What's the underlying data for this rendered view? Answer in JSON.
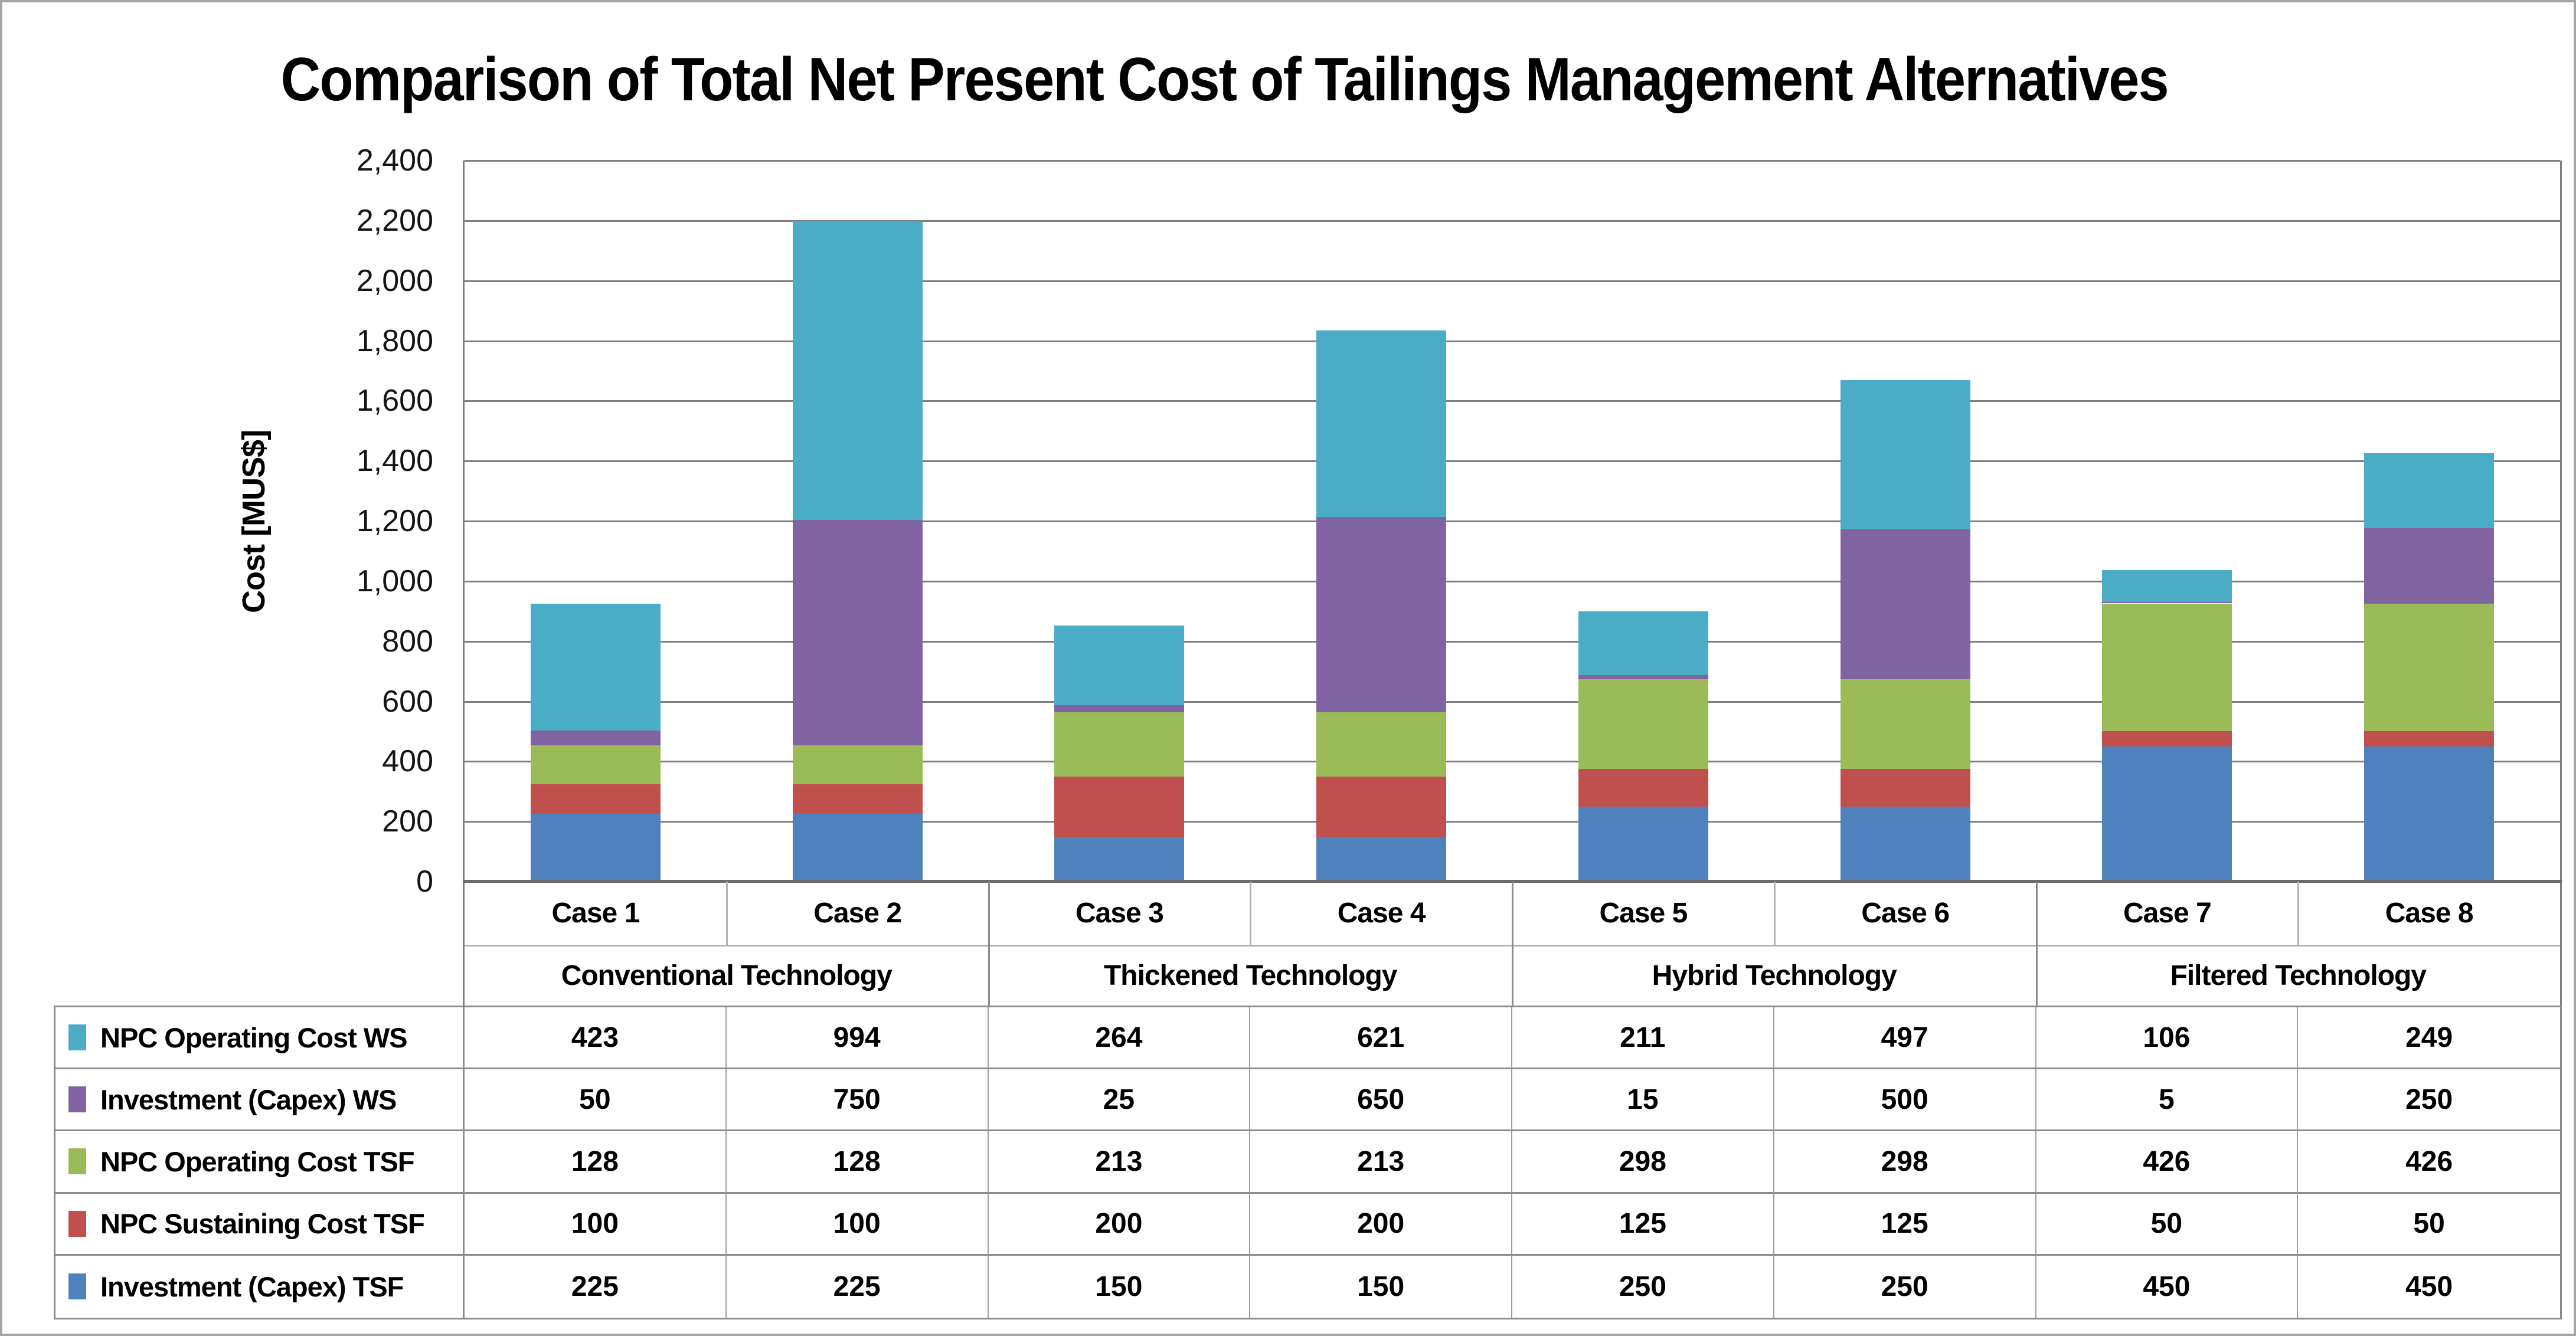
{
  "window": {
    "background": "#ffffff",
    "frame_border_color": "#a6a6a6"
  },
  "chart_data": {
    "type": "bar",
    "stacked": true,
    "title": "Comparison of Total Net Present Cost of Tailings Management Alternatives",
    "xlabel": "",
    "ylabel": "Cost [MUS$]",
    "ylim": [
      0,
      2400
    ],
    "ytick_step": 200,
    "ytick_labels_top_to_bottom": [
      "2,400",
      "2,200",
      "2,000",
      "1,800",
      "1,600",
      "1,400",
      "1,200",
      "1,000",
      "800",
      "600",
      "400",
      "200",
      "0"
    ],
    "grid": true,
    "gridline_color": "#7f7f7f",
    "legend_position": "left column of data table below chart",
    "categories": [
      "Case 1",
      "Case 2",
      "Case 3",
      "Case 4",
      "Case 5",
      "Case 6",
      "Case 7",
      "Case 8"
    ],
    "category_groups": [
      {
        "label": "Conventional Technology",
        "cases": [
          "Case 1",
          "Case 2"
        ]
      },
      {
        "label": "Thickened Technology",
        "cases": [
          "Case 3",
          "Case 4"
        ]
      },
      {
        "label": "Hybrid Technology",
        "cases": [
          "Case 5",
          "Case 6"
        ]
      },
      {
        "label": "Filtered Technology",
        "cases": [
          "Case 7",
          "Case 8"
        ]
      }
    ],
    "stack_order_bottom_to_top": [
      "Investment (Capex) TSF",
      "NPC Sustaining Cost TSF",
      "NPC Operating Cost TSF",
      "Investment (Capex) WS",
      "NPC Operating Cost WS"
    ],
    "series": [
      {
        "name": "NPC Operating Cost WS",
        "color": "#4BACC6",
        "values": [
          423,
          994,
          264,
          621,
          211,
          497,
          106,
          249
        ]
      },
      {
        "name": "Investment (Capex) WS",
        "color": "#8064A2",
        "values": [
          50,
          750,
          25,
          650,
          15,
          500,
          5,
          250
        ]
      },
      {
        "name": "NPC Operating Cost TSF",
        "color": "#9BBB59",
        "values": [
          128,
          128,
          213,
          213,
          298,
          298,
          426,
          426
        ]
      },
      {
        "name": "NPC Sustaining Cost TSF",
        "color": "#C0504D",
        "values": [
          100,
          100,
          200,
          200,
          125,
          125,
          50,
          50
        ]
      },
      {
        "name": "Investment (Capex) TSF",
        "color": "#4F81BD",
        "values": [
          225,
          225,
          150,
          150,
          250,
          250,
          450,
          450
        ]
      }
    ],
    "stacked_case_totals": [
      926,
      2197,
      852,
      1834,
      899,
      1670,
      1037,
      1425
    ]
  }
}
